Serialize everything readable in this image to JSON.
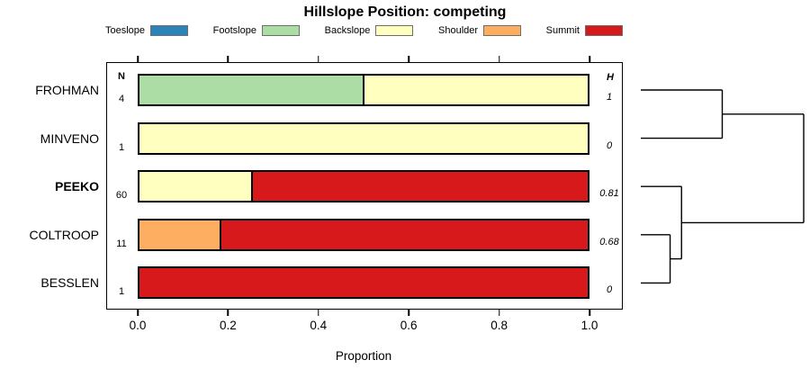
{
  "title": "Hillslope Position: competing",
  "legend": {
    "items": [
      {
        "label": "Toeslope",
        "color": "#2b83ba"
      },
      {
        "label": "Footslope",
        "color": "#abdda4"
      },
      {
        "label": "Backslope",
        "color": "#ffffbf"
      },
      {
        "label": "Shoulder",
        "color": "#fdae61"
      },
      {
        "label": "Summit",
        "color": "#d7191c"
      }
    ]
  },
  "columns": {
    "n_header": "N",
    "h_header": "H"
  },
  "axis": {
    "label": "Proportion",
    "ticks": [
      "0.0",
      "0.2",
      "0.4",
      "0.6",
      "0.8",
      "1.0"
    ],
    "tick_values": [
      0,
      0.2,
      0.4,
      0.6,
      0.8,
      1.0
    ],
    "range": [
      0,
      1
    ]
  },
  "chart_data": {
    "type": "bar",
    "orientation": "horizontal-stacked",
    "title": "Hillslope Position: competing",
    "xlabel": "Proportion",
    "xlim": [
      0,
      1
    ],
    "categories": [
      "Toeslope",
      "Footslope",
      "Backslope",
      "Shoulder",
      "Summit"
    ],
    "rows": [
      {
        "label": "FROHMAN",
        "bold": false,
        "n": "4",
        "h": "1",
        "segments": [
          {
            "category": "Footslope",
            "value": 0.5
          },
          {
            "category": "Backslope",
            "value": 0.5
          }
        ]
      },
      {
        "label": "MINVENO",
        "bold": false,
        "n": "1",
        "h": "0",
        "segments": [
          {
            "category": "Backslope",
            "value": 1.0
          }
        ]
      },
      {
        "label": "PEEKO",
        "bold": true,
        "n": "60",
        "h": "0.81",
        "segments": [
          {
            "category": "Backslope",
            "value": 0.25
          },
          {
            "category": "Summit",
            "value": 0.75
          }
        ]
      },
      {
        "label": "COLTROOP",
        "bold": false,
        "n": "11",
        "h": "0.68",
        "segments": [
          {
            "category": "Shoulder",
            "value": 0.18
          },
          {
            "category": "Summit",
            "value": 0.82
          }
        ]
      },
      {
        "label": "BESSLEN",
        "bold": false,
        "n": "1",
        "h": "0",
        "segments": [
          {
            "category": "Summit",
            "value": 1.0
          }
        ]
      }
    ],
    "dendrogram": {
      "leaves": [
        "FROHMAN",
        "MINVENO",
        "PEEKO",
        "COLTROOP",
        "BESSLEN"
      ],
      "merges": [
        {
          "id": "m1",
          "children": [
            "COLTROOP",
            "BESSLEN"
          ],
          "height": 0.18
        },
        {
          "id": "m2",
          "children": [
            "PEEKO",
            "m1"
          ],
          "height": 0.25
        },
        {
          "id": "m3",
          "children": [
            "FROHMAN",
            "MINVENO"
          ],
          "height": 0.5
        },
        {
          "id": "root",
          "children": [
            "m3",
            "m2"
          ],
          "height": 1.0
        }
      ]
    }
  }
}
